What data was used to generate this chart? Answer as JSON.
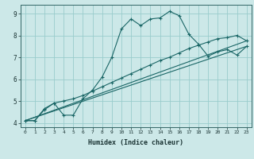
{
  "xlabel": "Humidex (Indice chaleur)",
  "bg_color": "#cce8e8",
  "grid_color": "#99cccc",
  "line_color": "#1a6666",
  "xlim": [
    -0.5,
    23.5
  ],
  "ylim": [
    3.8,
    9.4
  ],
  "yticks": [
    4,
    5,
    6,
    7,
    8,
    9
  ],
  "xticks": [
    0,
    1,
    2,
    3,
    4,
    5,
    6,
    7,
    8,
    9,
    10,
    11,
    12,
    13,
    14,
    15,
    16,
    17,
    18,
    19,
    20,
    21,
    22,
    23
  ],
  "line1_x": [
    0,
    1,
    2,
    3,
    4,
    5,
    6,
    7,
    8,
    9,
    10,
    11,
    12,
    13,
    14,
    15,
    16,
    17,
    18,
    19,
    20,
    21,
    22,
    23
  ],
  "line1_y": [
    4.1,
    4.1,
    4.65,
    4.9,
    4.35,
    4.35,
    5.1,
    5.5,
    6.1,
    7.0,
    8.3,
    8.75,
    8.45,
    8.75,
    8.8,
    9.1,
    8.9,
    8.05,
    7.6,
    7.05,
    7.25,
    7.35,
    7.1,
    7.5
  ],
  "line2_x": [
    0,
    1,
    2,
    3,
    4,
    5,
    6,
    7,
    8,
    9,
    10,
    11,
    12,
    13,
    14,
    15,
    16,
    17,
    18,
    19,
    20,
    21,
    22,
    23
  ],
  "line2_y": [
    4.1,
    4.1,
    4.6,
    4.9,
    5.0,
    5.1,
    5.25,
    5.45,
    5.65,
    5.85,
    6.05,
    6.25,
    6.45,
    6.65,
    6.85,
    7.0,
    7.2,
    7.4,
    7.55,
    7.7,
    7.85,
    7.9,
    8.0,
    7.75
  ],
  "line3_x": [
    0,
    23
  ],
  "line3_y": [
    4.1,
    7.75
  ],
  "line4_x": [
    0,
    23
  ],
  "line4_y": [
    4.1,
    7.5
  ]
}
